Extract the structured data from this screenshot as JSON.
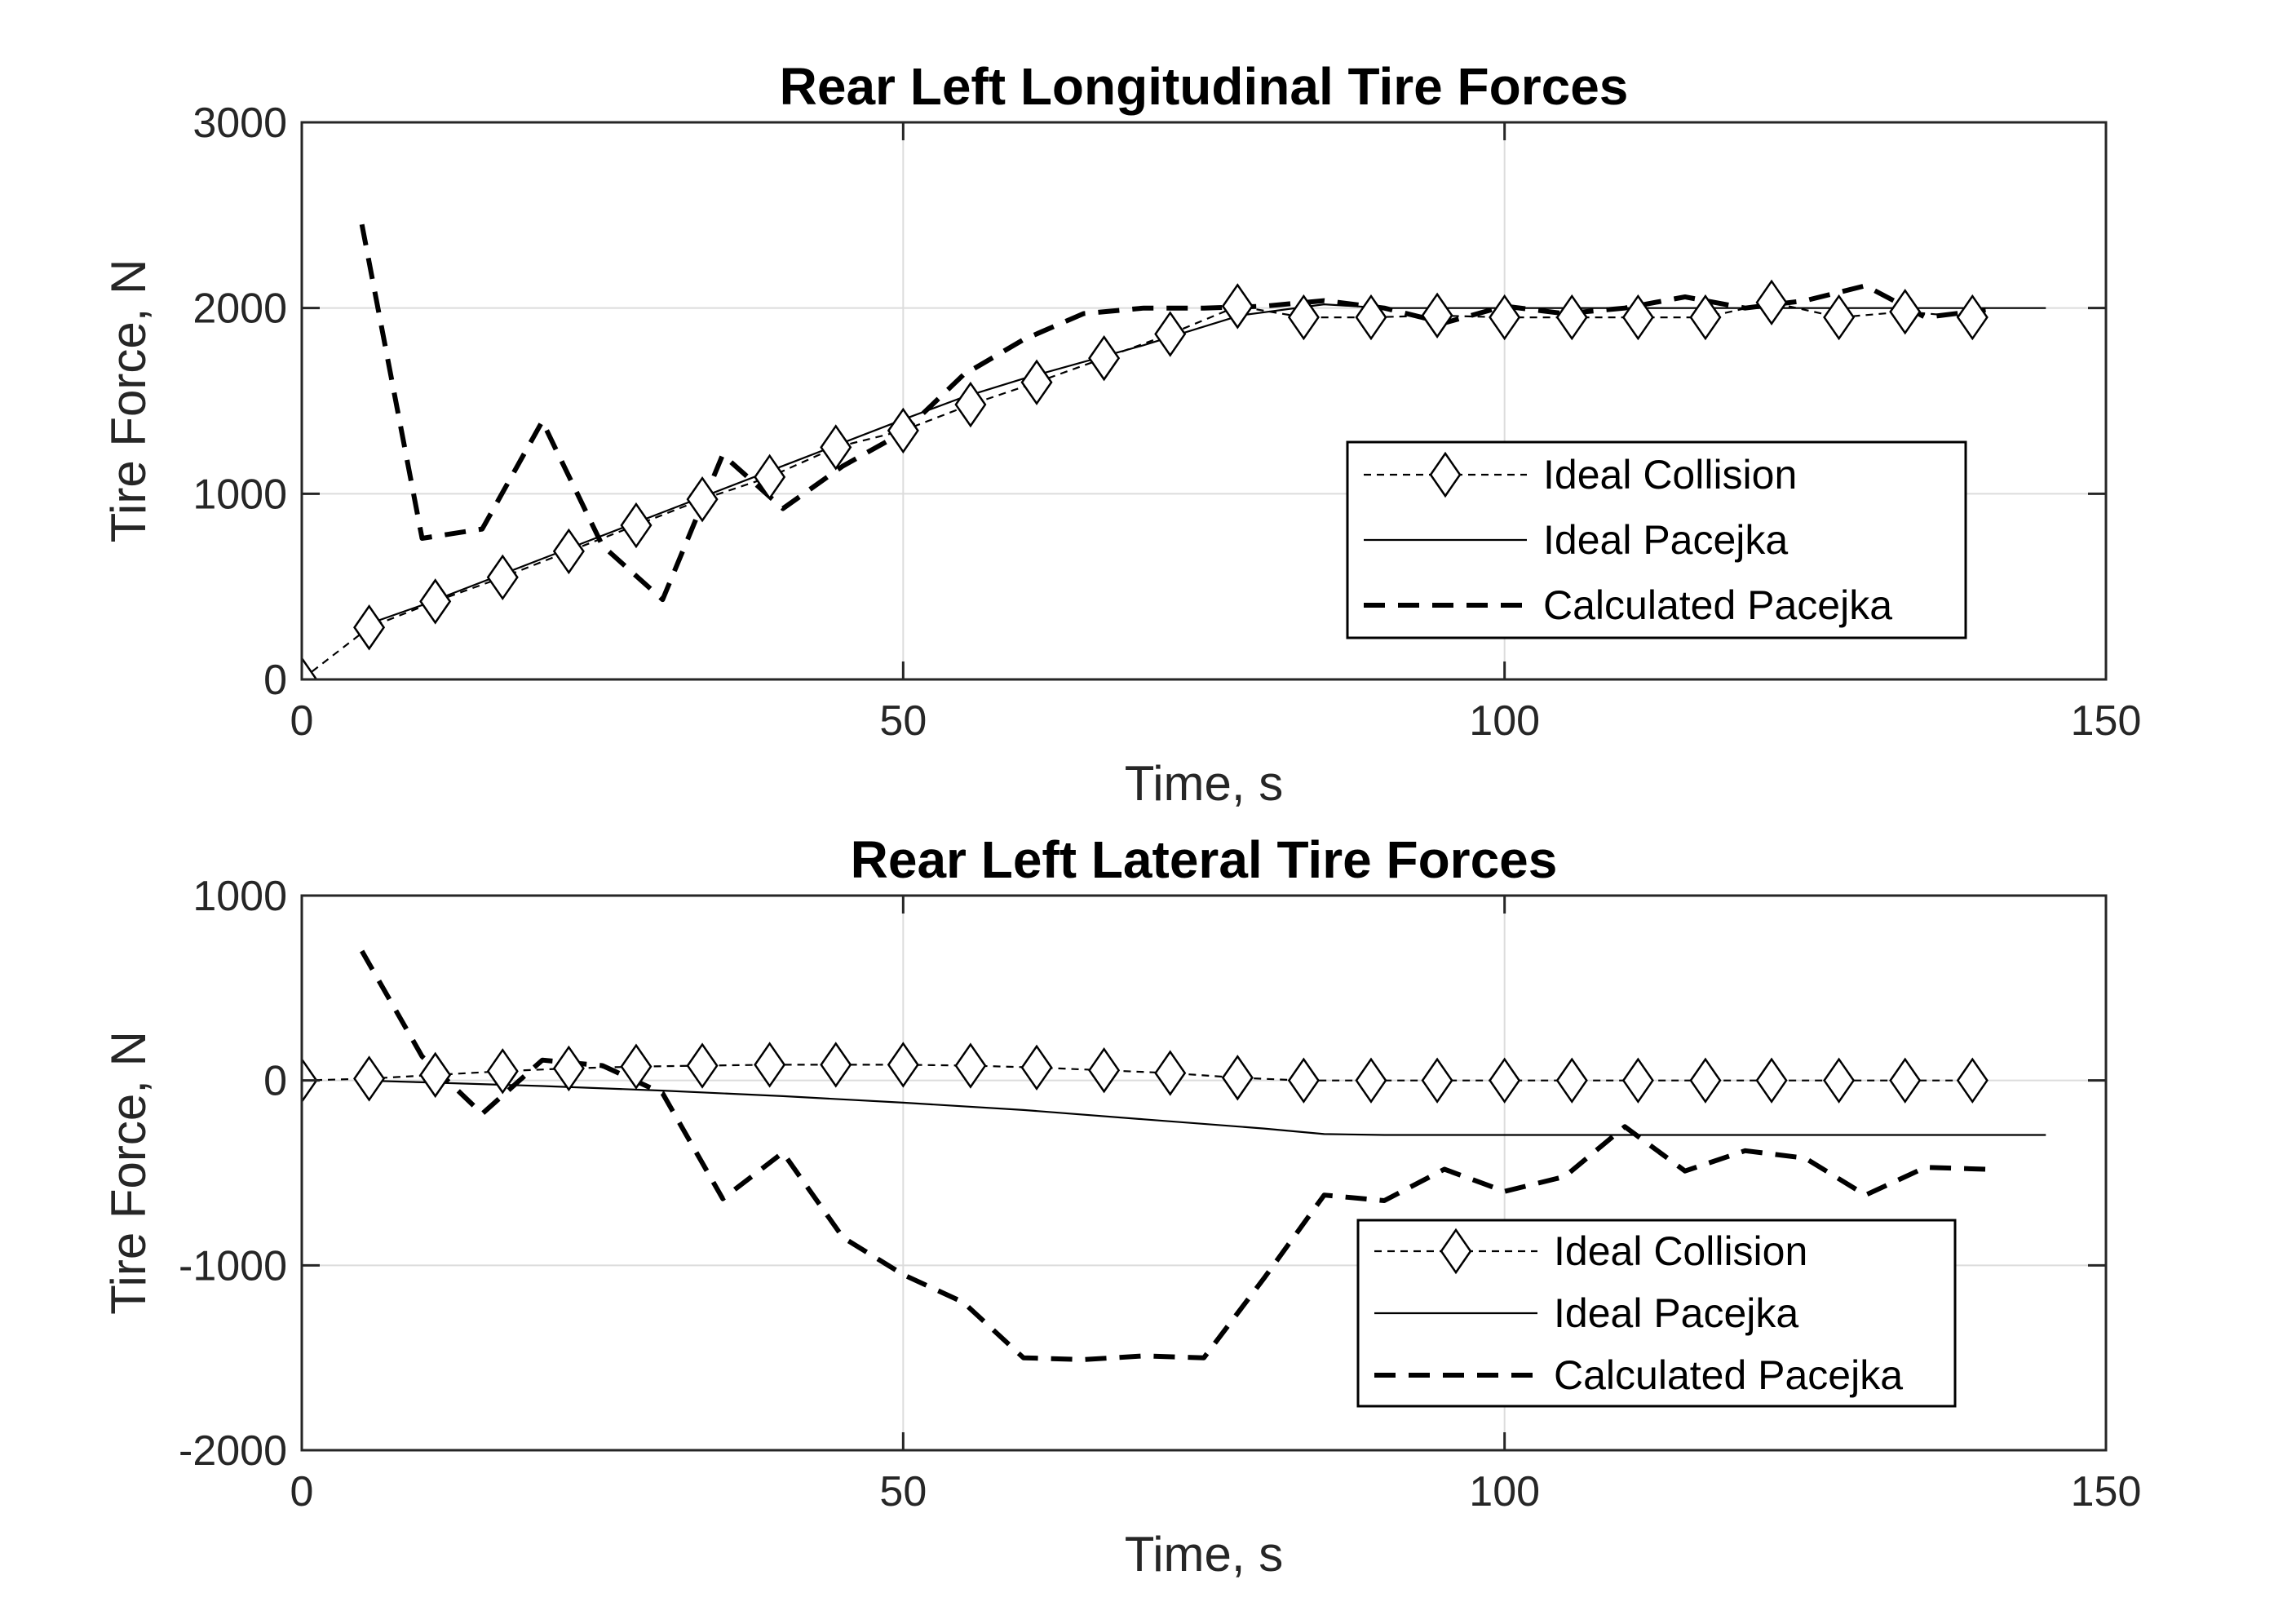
{
  "chart_data": [
    {
      "type": "line",
      "title": "Rear Left Longitudinal Tire Forces",
      "xlabel": "Time, s",
      "ylabel": "Tire Force, N",
      "xlim": [
        0,
        150
      ],
      "ylim": [
        0,
        3000
      ],
      "xticks": [
        0,
        50,
        100,
        150
      ],
      "yticks": [
        0,
        1000,
        2000,
        3000
      ],
      "grid": true,
      "legend_position": "lower-right",
      "series": [
        {
          "name": "Ideal Collision",
          "style": "thin-dashed-diamond",
          "x": [
            0,
            5.6,
            11.1,
            16.7,
            22.2,
            27.8,
            33.3,
            38.9,
            44.4,
            50,
            55.6,
            61.1,
            66.7,
            72.2,
            77.8,
            83.3,
            88.9,
            94.4,
            100,
            105.6,
            111.1,
            116.7,
            122.2,
            127.8,
            133.3,
            138.9
          ],
          "y": [
            0,
            280,
            420,
            550,
            690,
            830,
            970,
            1090,
            1250,
            1340,
            1480,
            1600,
            1730,
            1860,
            2010,
            1950,
            1950,
            1960,
            1950,
            1950,
            1950,
            1950,
            2030,
            1950,
            1980,
            1950
          ]
        },
        {
          "name": "Ideal Pacejka",
          "style": "thin-solid",
          "x": [
            5.6,
            10,
            20,
            30,
            40,
            50,
            55,
            60,
            70,
            78,
            85,
            90,
            100,
            110,
            120,
            130,
            145
          ],
          "y": [
            300,
            400,
            650,
            900,
            1150,
            1400,
            1520,
            1620,
            1800,
            1960,
            2020,
            2000,
            2000,
            2000,
            2000,
            2000,
            2000
          ]
        },
        {
          "name": "Calculated Pacejka",
          "style": "thick-dashed",
          "x": [
            5,
            10,
            15,
            20,
            25,
            30,
            35,
            40,
            45,
            50,
            55,
            60,
            65,
            70,
            75,
            80,
            85,
            90,
            95,
            100,
            105,
            110,
            115,
            120,
            125,
            130,
            135,
            140
          ],
          "y": [
            2450,
            760,
            810,
            1390,
            720,
            430,
            1210,
            920,
            1150,
            1330,
            1640,
            1830,
            1970,
            2000,
            2000,
            2010,
            2040,
            2000,
            1920,
            2010,
            1970,
            2000,
            2060,
            2000,
            2040,
            2120,
            1950,
            1990
          ]
        }
      ]
    },
    {
      "type": "line",
      "title": "Rear Left Lateral Tire Forces",
      "xlabel": "Time, s",
      "ylabel": "Tire Force, N",
      "xlim": [
        0,
        150
      ],
      "ylim": [
        -2000,
        1000
      ],
      "xticks": [
        0,
        50,
        100,
        150
      ],
      "yticks": [
        -2000,
        -1000,
        0,
        1000
      ],
      "grid": true,
      "legend_position": "lower-right",
      "series": [
        {
          "name": "Ideal Collision",
          "style": "thin-dashed-diamond",
          "x": [
            0,
            5.6,
            11.1,
            16.7,
            22.2,
            27.8,
            33.3,
            38.9,
            44.4,
            50,
            55.6,
            61.1,
            66.7,
            72.2,
            77.8,
            83.3,
            88.9,
            94.4,
            100,
            105.6,
            111.1,
            116.7,
            122.2,
            127.8,
            133.3,
            138.9
          ],
          "y": [
            0,
            10,
            30,
            50,
            65,
            75,
            80,
            85,
            85,
            85,
            80,
            70,
            55,
            40,
            15,
            0,
            0,
            0,
            0,
            0,
            0,
            0,
            0,
            0,
            0,
            0
          ]
        },
        {
          "name": "Ideal Pacejka",
          "style": "thin-solid",
          "x": [
            5,
            10,
            20,
            30,
            40,
            50,
            60,
            70,
            80,
            85,
            90,
            100,
            110,
            120,
            130,
            145
          ],
          "y": [
            0,
            -10,
            -30,
            -55,
            -85,
            -120,
            -160,
            -210,
            -260,
            -290,
            -295,
            -295,
            -295,
            -295,
            -295,
            -295
          ]
        },
        {
          "name": "Calculated Pacejka",
          "style": "thick-dashed",
          "x": [
            5,
            10,
            15,
            20,
            25,
            30,
            35,
            40,
            45,
            50,
            55,
            60,
            65,
            70,
            75,
            80,
            85,
            90,
            95,
            100,
            105,
            110,
            115,
            120,
            125,
            130,
            135,
            140
          ],
          "y": [
            700,
            130,
            -180,
            110,
            80,
            -70,
            -640,
            -390,
            -850,
            -1050,
            -1200,
            -1500,
            -1510,
            -1490,
            -1500,
            -1070,
            -620,
            -650,
            -480,
            -600,
            -520,
            -250,
            -490,
            -380,
            -420,
            -620,
            -470,
            -480
          ]
        }
      ]
    }
  ]
}
